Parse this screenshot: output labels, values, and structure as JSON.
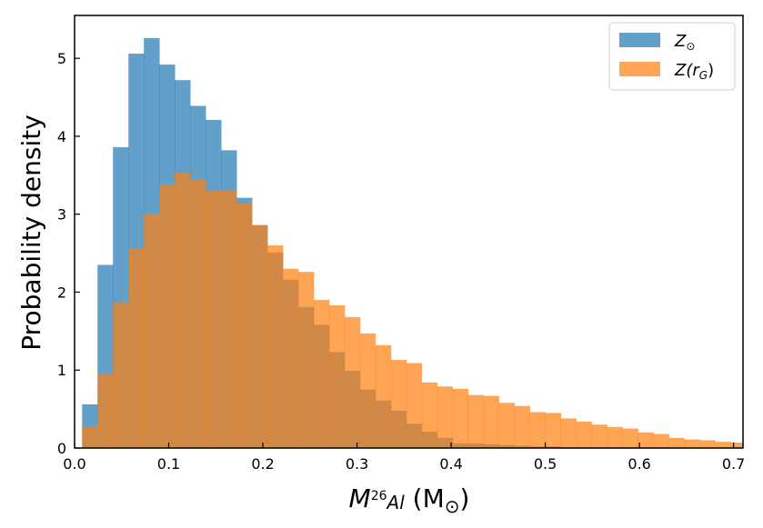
{
  "chart_data": {
    "type": "bar",
    "subtype": "histogram",
    "title": "",
    "xlabel": "M²⁶Al (M⊙)",
    "ylabel": "Probability density",
    "xlim": [
      0.0,
      0.71
    ],
    "ylim": [
      0.0,
      5.55
    ],
    "xticks": [
      "0.0",
      "0.1",
      "0.2",
      "0.3",
      "0.4",
      "0.5",
      "0.6",
      "0.7"
    ],
    "xtick_values": [
      0.0,
      0.1,
      0.2,
      0.3,
      0.4,
      0.5,
      0.6,
      0.7
    ],
    "yticks": [
      "0",
      "1",
      "2",
      "3",
      "4",
      "5"
    ],
    "ytick_values": [
      0,
      1,
      2,
      3,
      4,
      5
    ],
    "grid": false,
    "legend_position": "top-right",
    "series": [
      {
        "name": "Z⊙",
        "color": "#1f77b4",
        "alpha": 0.7,
        "bin_start": 0.008,
        "bin_width": 0.0164,
        "values": [
          0.56,
          2.35,
          3.86,
          5.06,
          5.26,
          4.92,
          4.72,
          4.39,
          4.21,
          3.82,
          3.21,
          2.86,
          2.51,
          2.16,
          1.81,
          1.58,
          1.23,
          0.99,
          0.75,
          0.61,
          0.48,
          0.31,
          0.21,
          0.13,
          0.06,
          0.06,
          0.05,
          0.04,
          0.03,
          0.02,
          0.02,
          0.01,
          0.01,
          0.01,
          0.01,
          0.01,
          0.01,
          0.01,
          0.0,
          0.0,
          0.0,
          0.0,
          0.0,
          0.0
        ]
      },
      {
        "name": "Z(r_G)",
        "color": "#ff7f0e",
        "alpha": 0.7,
        "bin_start": 0.008,
        "bin_width": 0.0164,
        "values": [
          0.28,
          0.95,
          1.87,
          2.56,
          3.0,
          3.38,
          3.53,
          3.45,
          3.3,
          3.31,
          3.14,
          2.86,
          2.6,
          2.3,
          2.26,
          1.9,
          1.83,
          1.68,
          1.47,
          1.32,
          1.13,
          1.09,
          0.84,
          0.79,
          0.76,
          0.68,
          0.67,
          0.58,
          0.54,
          0.46,
          0.45,
          0.38,
          0.34,
          0.3,
          0.27,
          0.25,
          0.2,
          0.18,
          0.13,
          0.11,
          0.1,
          0.08,
          0.07,
          0.06
        ]
      }
    ]
  },
  "legend": {
    "entries": [
      {
        "base": "Z",
        "sub": "⊙",
        "close": ""
      },
      {
        "base": "Z(r",
        "sub": "G",
        "close": ")"
      }
    ]
  },
  "axes": {
    "xlabel_main": "M",
    "xlabel_sup": "26",
    "xlabel_sub": "Al",
    "xlabel_unit_open": " (M",
    "xlabel_unit_sub": "⊙",
    "xlabel_unit_close": ")",
    "ylabel": "Probability density"
  }
}
